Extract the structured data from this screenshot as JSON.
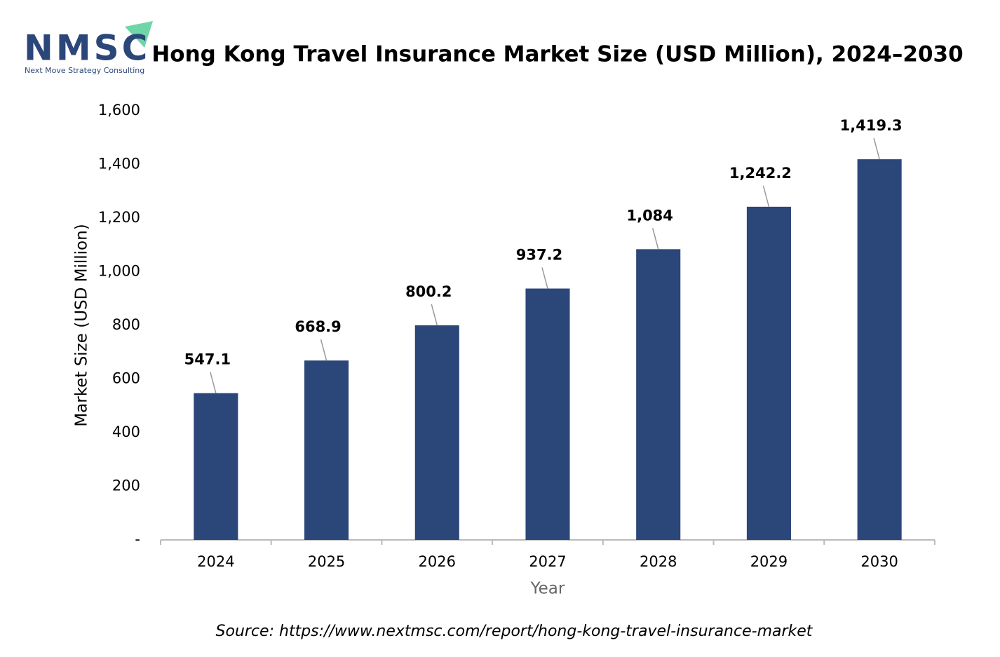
{
  "logo": {
    "name": "NMSC",
    "tagline": "Next Move Strategy Consulting"
  },
  "chart_data": {
    "type": "bar",
    "title": "Hong Kong Travel Insurance Market Size (USD Million), 2024–2030",
    "x_label": "Year",
    "y_label": "Market Size (USD Million)",
    "source": "Source: https://www.nextmsc.com/report/hong-kong-travel-insurance-market",
    "categories": [
      "2024",
      "2025",
      "2026",
      "2027",
      "2028",
      "2029",
      "2030"
    ],
    "values": [
      547.1,
      668.9,
      800.2,
      937.2,
      1084,
      1242.2,
      1419.3
    ],
    "value_labels": [
      "547.1",
      "668.9",
      "800.2",
      "937.2",
      "1,084",
      "1,242.2",
      "1,419.3"
    ],
    "color": "#2b4679",
    "ylim": [
      0,
      1600
    ],
    "yticks": [
      {
        "value": 0,
        "label": "-"
      },
      200,
      400,
      600,
      800,
      {
        "value": 1000,
        "label": "1,000"
      },
      {
        "value": 1200,
        "label": "1,200"
      },
      {
        "value": 1400,
        "label": "1,400"
      },
      {
        "value": 1600,
        "label": "1,600"
      }
    ],
    "grid": false
  }
}
